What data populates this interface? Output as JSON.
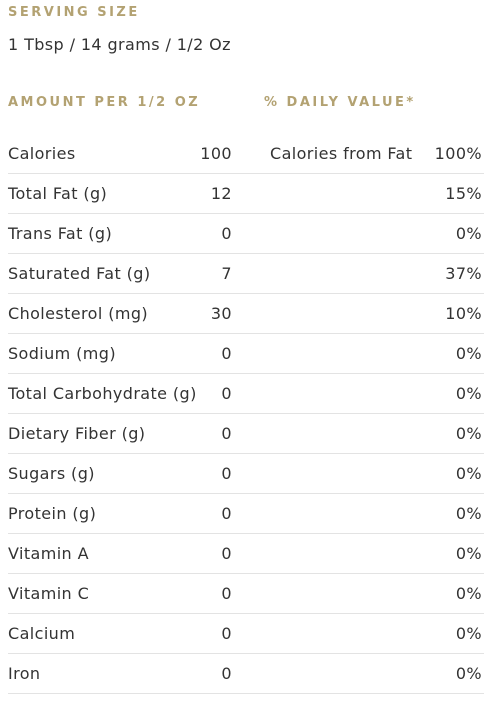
{
  "serving": {
    "label": "SERVING SIZE",
    "value": "1 Tbsp / 14 grams / 1/2 Oz"
  },
  "table": {
    "amount_header": "AMOUNT PER 1/2 OZ",
    "daily_header": "% DAILY VALUE*",
    "rows": [
      {
        "name": "Calories",
        "amount": "100",
        "extra": "Calories from Fat",
        "dv": "100%"
      },
      {
        "name": "Total Fat (g)",
        "amount": "12",
        "extra": "",
        "dv": "15%"
      },
      {
        "name": "Trans Fat (g)",
        "amount": "0",
        "extra": "",
        "dv": "0%"
      },
      {
        "name": "Saturated Fat (g)",
        "amount": "7",
        "extra": "",
        "dv": "37%"
      },
      {
        "name": "Cholesterol (mg)",
        "amount": "30",
        "extra": "",
        "dv": "10%"
      },
      {
        "name": "Sodium (mg)",
        "amount": "0",
        "extra": "",
        "dv": "0%"
      },
      {
        "name": "Total Carbohydrate (g)",
        "amount": "0",
        "extra": "",
        "dv": "0%"
      },
      {
        "name": "Dietary Fiber (g)",
        "amount": "0",
        "extra": "",
        "dv": "0%"
      },
      {
        "name": "Sugars (g)",
        "amount": "0",
        "extra": "",
        "dv": "0%"
      },
      {
        "name": "Protein (g)",
        "amount": "0",
        "extra": "",
        "dv": "0%"
      },
      {
        "name": "Vitamin A",
        "amount": "0",
        "extra": "",
        "dv": "0%"
      },
      {
        "name": "Vitamin C",
        "amount": "0",
        "extra": "",
        "dv": "0%"
      },
      {
        "name": "Calcium",
        "amount": "0",
        "extra": "",
        "dv": "0%"
      },
      {
        "name": "Iron",
        "amount": "0",
        "extra": "",
        "dv": "0%"
      }
    ]
  },
  "colors": {
    "label_gold": "#b3a272",
    "text": "#333333",
    "divider": "#e3e3e3"
  }
}
